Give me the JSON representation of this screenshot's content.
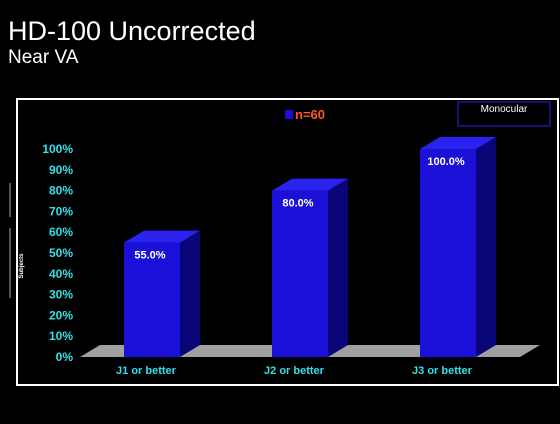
{
  "slide": {
    "title": "HD-100 Uncorrected",
    "subtitle": "Near VA"
  },
  "colors": {
    "background": "#000000",
    "bar_front": "#1a10d8",
    "bar_side": "#0a0678",
    "bar_top": "#2a22ee",
    "tick_label": "#33e0e8",
    "data_label": "#ffffff",
    "legend_text": "#ff5a1e",
    "floor": "#a0a0a0",
    "frame": "#ffffff",
    "box_border": "#2a2ae0"
  },
  "chart_data": {
    "type": "bar",
    "categories": [
      "J1 or better",
      "J2 or better",
      "J3 or better"
    ],
    "series": [
      {
        "name": "n=60",
        "values": [
          55.0,
          80.0,
          100.0
        ]
      }
    ],
    "data_labels": [
      "55.0%",
      "80.0%",
      "100.0%"
    ],
    "ylabel": "Subjects",
    "ylim": [
      0,
      100
    ],
    "yticks": [
      "0%",
      "10%",
      "20%",
      "30%",
      "40%",
      "50%",
      "60%",
      "70%",
      "80%",
      "90%",
      "100%"
    ],
    "legend_placement": "top-center",
    "annotation_box": "Monocular",
    "grid": false,
    "three_d": true
  }
}
